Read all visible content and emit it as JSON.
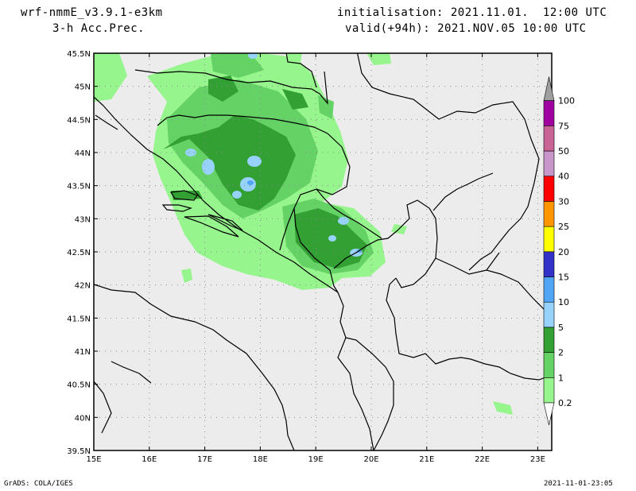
{
  "header": {
    "model": "wrf-nmmE_v3.9.1-e3km",
    "variable": "3-h Acc.Prec.",
    "init": "initialisation: 2021.11.01.  12:00 UTC",
    "valid": "valid(+94h): 2021.NOV.05 10:00 UTC"
  },
  "footer": {
    "credit": "GrADS: COLA/IGES",
    "timestamp": "2021-11-01-23:05"
  },
  "map": {
    "lat_labels": [
      "45.5N",
      "45N",
      "44.5N",
      "44N",
      "43.5N",
      "43N",
      "42.5N",
      "42N",
      "41.5N",
      "41N",
      "40.5N",
      "40N",
      "39.5N"
    ],
    "lon_labels": [
      "15E",
      "16E",
      "17E",
      "18E",
      "19E",
      "20E",
      "21E",
      "22E",
      "23E"
    ],
    "background_color": "#ececec",
    "grid": "dotted"
  },
  "colorbar": {
    "levels": [
      "0.2",
      "1",
      "2",
      "5",
      "10",
      "15",
      "20",
      "25",
      "30",
      "40",
      "50",
      "75",
      "100"
    ],
    "colors": [
      "#96f58c",
      "#64d264",
      "#32a032",
      "#96d2fa",
      "#50a5f5",
      "#3232c8",
      "#ffff00",
      "#ff9600",
      "#ff0000",
      "#c896c8",
      "#c86496",
      "#a000a0",
      "#a0a0a0"
    ]
  }
}
